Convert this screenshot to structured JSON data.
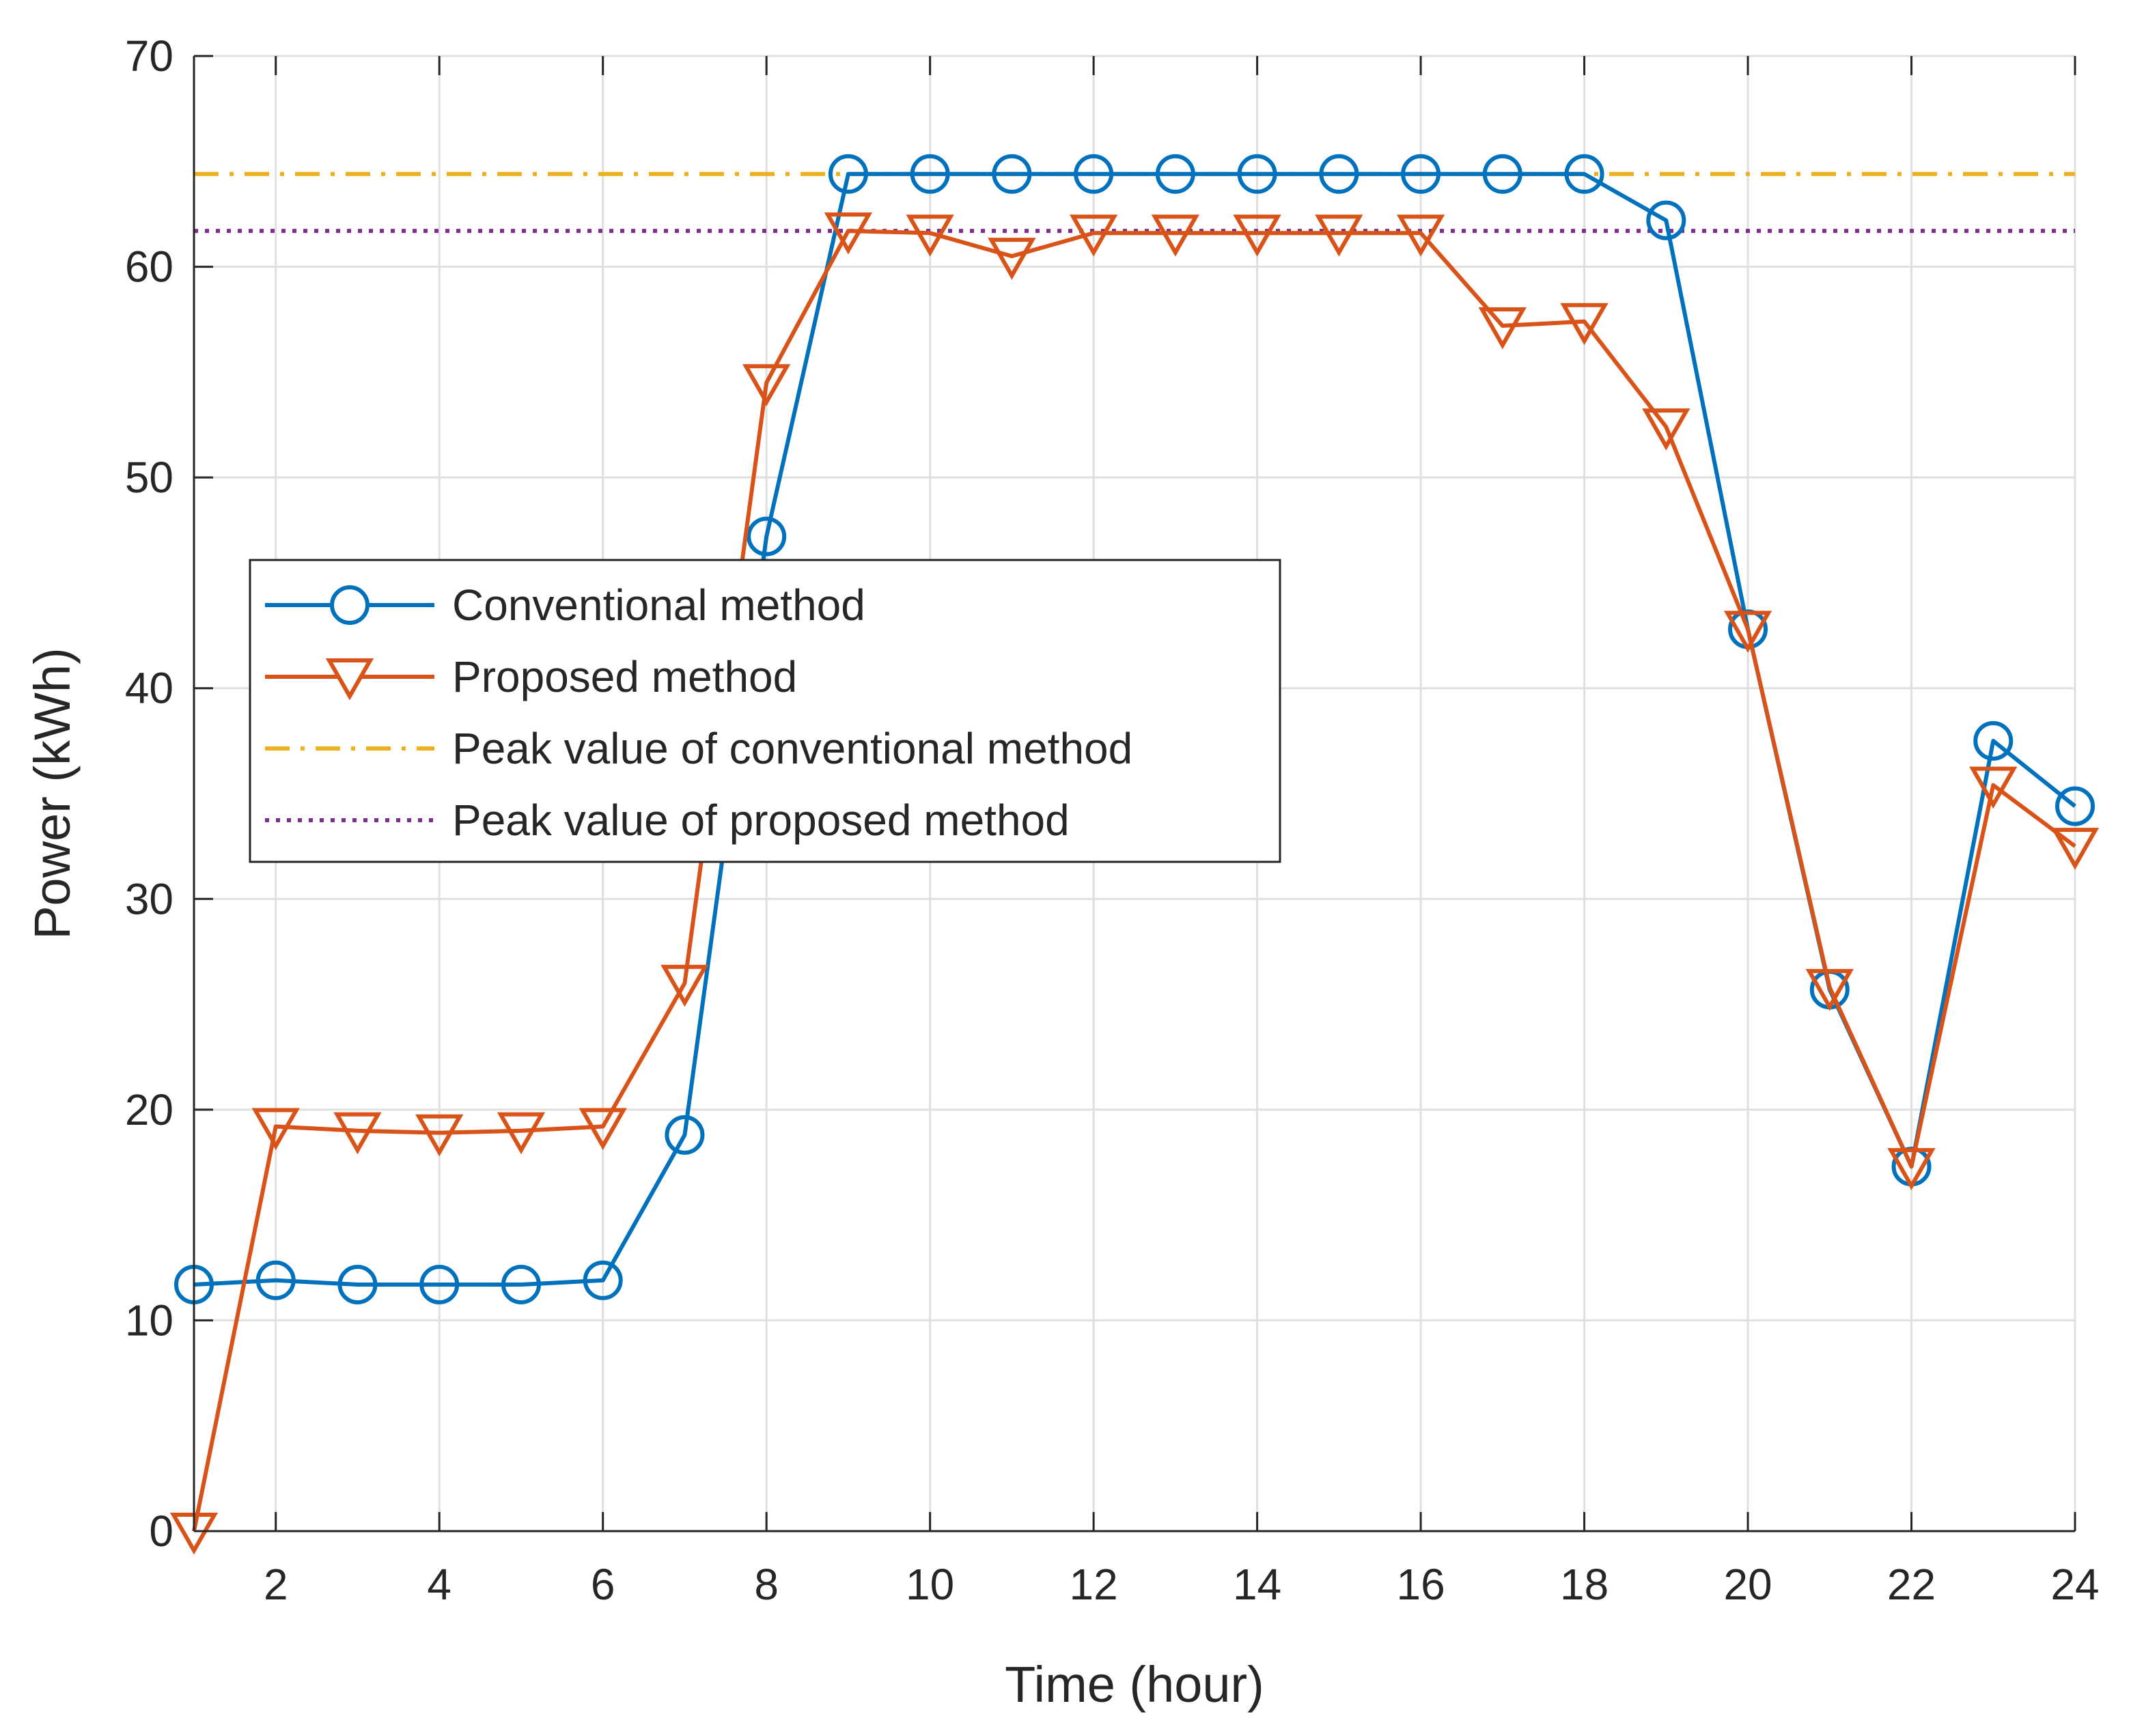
{
  "chart_data": {
    "type": "line",
    "title": "",
    "xlabel": "Time (hour)",
    "ylabel": "Power (kWh)",
    "xlim": [
      1,
      24
    ],
    "ylim": [
      0,
      70
    ],
    "xticks": [
      2,
      4,
      6,
      8,
      10,
      12,
      14,
      16,
      18,
      20,
      22,
      24
    ],
    "yticks": [
      0,
      10,
      20,
      30,
      40,
      50,
      60,
      70
    ],
    "grid": true,
    "legend_position": "left-middle",
    "x": [
      1,
      2,
      3,
      4,
      5,
      6,
      7,
      8,
      9,
      10,
      11,
      12,
      13,
      14,
      15,
      16,
      17,
      18,
      19,
      20,
      21,
      22,
      23,
      24
    ],
    "series": [
      {
        "name": "Conventional method",
        "color": "#0072bd",
        "marker": "circle",
        "values": [
          11.7,
          11.9,
          11.7,
          11.7,
          11.7,
          11.9,
          18.8,
          47.2,
          64.4,
          64.4,
          64.4,
          64.4,
          64.4,
          64.4,
          64.4,
          64.4,
          64.4,
          64.4,
          62.2,
          42.8,
          25.7,
          17.3,
          37.5,
          34.4
        ]
      },
      {
        "name": "Proposed method",
        "color": "#d95319",
        "marker": "triangle-down",
        "values": [
          0.0,
          19.2,
          19.0,
          18.9,
          19.0,
          19.2,
          26.0,
          54.5,
          61.7,
          61.6,
          60.5,
          61.6,
          61.6,
          61.6,
          61.6,
          61.6,
          57.2,
          57.4,
          52.4,
          42.8,
          25.8,
          17.3,
          35.4,
          32.5
        ]
      }
    ],
    "reference_lines": [
      {
        "name": "Peak value of conventional method",
        "value": 64.4,
        "color": "#edb120",
        "style": "dashdot"
      },
      {
        "name": "Peak value of proposed method",
        "value": 61.7,
        "color": "#7e2f8e",
        "style": "dotted"
      }
    ]
  }
}
